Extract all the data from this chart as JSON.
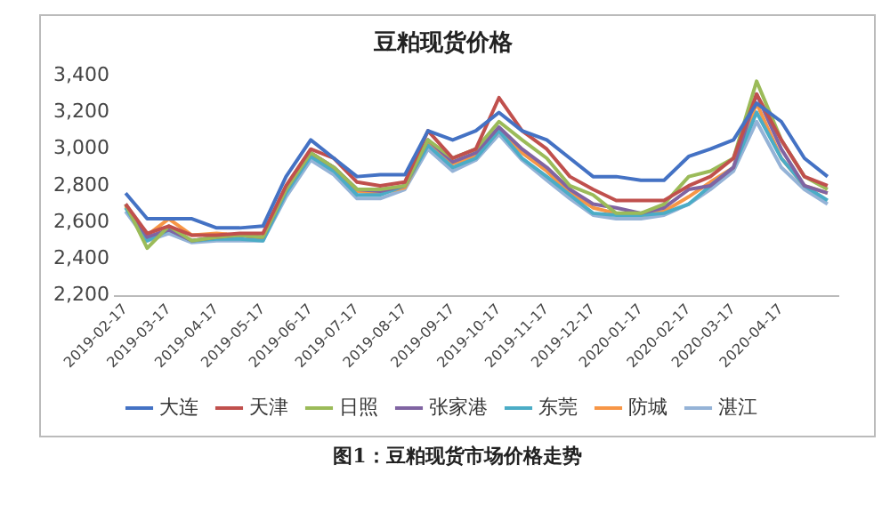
{
  "chart_data": {
    "type": "line",
    "title": "豆粕现货价格",
    "annotations": [
      "图1：豆粕现货市场价格走势"
    ],
    "x": [
      "2019-02-17",
      "2019-03-03",
      "2019-03-17",
      "2019-04-01",
      "2019-04-17",
      "2019-05-02",
      "2019-05-17",
      "2019-06-01",
      "2019-06-17",
      "2019-07-02",
      "2019-07-17",
      "2019-08-01",
      "2019-08-17",
      "2019-09-01",
      "2019-09-17",
      "2019-10-02",
      "2019-10-17",
      "2019-11-01",
      "2019-11-17",
      "2019-12-02",
      "2019-12-17",
      "2020-01-01",
      "2020-01-17",
      "2020-02-01",
      "2020-02-17",
      "2020-03-02",
      "2020-03-17",
      "2020-04-01",
      "2020-04-17",
      "2020-05-02",
      "2020-05-17"
    ],
    "xlim": [
      "2019-02-10",
      "2020-05-24"
    ],
    "xticks": [
      "2019-02-17",
      "2019-03-17",
      "2019-04-17",
      "2019-05-17",
      "2019-06-17",
      "2019-07-17",
      "2019-08-17",
      "2019-09-17",
      "2019-10-17",
      "2019-11-17",
      "2019-12-17",
      "2020-01-17",
      "2020-02-17",
      "2020-03-17",
      "2020-04-17"
    ],
    "ylim": [
      2200,
      3400
    ],
    "yticks": [
      {
        "value": 2200,
        "label": "2,200"
      },
      {
        "value": 2400,
        "label": "2,400"
      },
      {
        "value": 2600,
        "label": "2,600"
      },
      {
        "value": 2800,
        "label": "2,800"
      },
      {
        "value": 3000,
        "label": "3,000"
      },
      {
        "value": 3200,
        "label": "3,200"
      },
      {
        "value": 3400,
        "label": "3,400"
      }
    ],
    "grid": false,
    "legend": "bottom",
    "line_style": "solid",
    "series": [
      {
        "name": "大连",
        "color": "#4472c4",
        "values": [
          2760,
          2620,
          2620,
          2620,
          2570,
          2570,
          2580,
          2850,
          3050,
          2950,
          2850,
          2860,
          2860,
          3100,
          3050,
          3100,
          3200,
          3100,
          3050,
          2950,
          2850,
          2850,
          2830,
          2830,
          2960,
          3000,
          3050,
          3250,
          3150,
          2950,
          2850
        ]
      },
      {
        "name": "天津",
        "color": "#c0504d",
        "values": [
          2700,
          2540,
          2580,
          2530,
          2530,
          2540,
          2540,
          2800,
          3000,
          2950,
          2820,
          2800,
          2820,
          3100,
          2950,
          3000,
          3280,
          3100,
          3000,
          2850,
          2780,
          2720,
          2720,
          2720,
          2800,
          2850,
          2950,
          3300,
          3050,
          2850,
          2800
        ]
      },
      {
        "name": "日照",
        "color": "#9bbb59",
        "values": [
          2700,
          2460,
          2580,
          2500,
          2520,
          2530,
          2520,
          2780,
          2980,
          2900,
          2780,
          2780,
          2800,
          3050,
          2950,
          3000,
          3150,
          3050,
          2950,
          2800,
          2750,
          2650,
          2650,
          2700,
          2850,
          2880,
          2950,
          3370,
          3050,
          2850,
          2780
        ]
      },
      {
        "name": "张家港",
        "color": "#8064a2",
        "values": [
          2700,
          2520,
          2560,
          2500,
          2520,
          2530,
          2520,
          2780,
          2980,
          2900,
          2780,
          2770,
          2800,
          3050,
          2930,
          2980,
          3120,
          3000,
          2900,
          2780,
          2700,
          2680,
          2650,
          2680,
          2780,
          2800,
          2900,
          3300,
          3000,
          2800,
          2760
        ]
      },
      {
        "name": "东莞",
        "color": "#4bacc6",
        "values": [
          2680,
          2500,
          2560,
          2500,
          2510,
          2510,
          2500,
          2760,
          2960,
          2880,
          2750,
          2750,
          2800,
          3020,
          2900,
          2950,
          3100,
          2950,
          2850,
          2750,
          2650,
          2640,
          2640,
          2650,
          2700,
          2800,
          2900,
          3200,
          2950,
          2800,
          2720
        ]
      },
      {
        "name": "防城",
        "color": "#f79646",
        "values": [
          2690,
          2530,
          2620,
          2530,
          2540,
          2530,
          2510,
          2770,
          2980,
          2900,
          2770,
          2760,
          2790,
          3030,
          2920,
          2960,
          3100,
          2980,
          2880,
          2760,
          2680,
          2650,
          2640,
          2660,
          2740,
          2820,
          2900,
          3250,
          2950,
          2800,
          2760
        ]
      },
      {
        "name": "湛江",
        "color": "#95b3d7",
        "values": [
          2660,
          2500,
          2540,
          2490,
          2500,
          2500,
          2500,
          2740,
          2940,
          2860,
          2730,
          2730,
          2780,
          3000,
          2880,
          2940,
          3080,
          2940,
          2830,
          2730,
          2640,
          2620,
          2620,
          2640,
          2700,
          2780,
          2880,
          3150,
          2900,
          2780,
          2700
        ]
      }
    ]
  }
}
